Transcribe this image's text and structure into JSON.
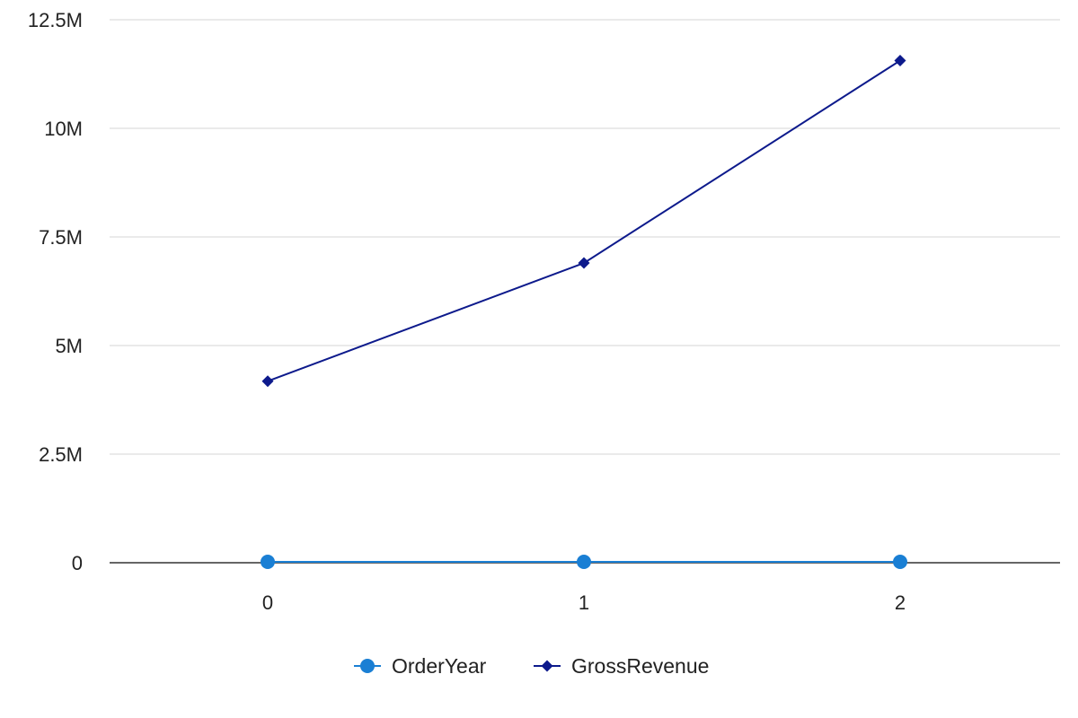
{
  "chart_data": {
    "type": "line",
    "x": [
      0,
      1,
      2
    ],
    "x_tick_labels": [
      "0",
      "1",
      "2"
    ],
    "ylim": [
      0,
      12500000
    ],
    "y_ticks": [
      0,
      2500000,
      5000000,
      7500000,
      10000000,
      12500000
    ],
    "y_tick_labels": [
      "0",
      "2.5M",
      "5M",
      "7.5M",
      "10M",
      "12.5M"
    ],
    "grid": true,
    "legend_position": "bottom",
    "series": [
      {
        "name": "OrderYear",
        "values": [
          2016,
          2017,
          2018
        ],
        "color": "#1a7fd4",
        "marker": "circle"
      },
      {
        "name": "GrossRevenue",
        "values": [
          4180000,
          6900000,
          11560000
        ],
        "color": "#0d1a8c",
        "marker": "diamond"
      }
    ]
  },
  "colors": {
    "grid": "#e3e3e3",
    "axis": "#333333"
  }
}
